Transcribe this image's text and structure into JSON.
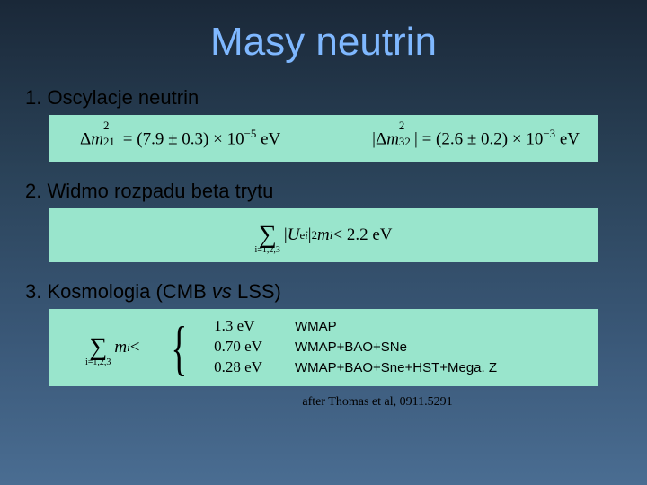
{
  "title": "Masy neutrin",
  "sections": {
    "s1": {
      "heading": "1. Oscylacje neutrin"
    },
    "s2": {
      "heading": "2. Widmo rozpadu beta trytu"
    },
    "s3": {
      "heading_prefix": "3. Kosmologia (CMB ",
      "heading_italic": "vs",
      "heading_suffix": " LSS)"
    }
  },
  "formulas": {
    "dm21_value": "(7.9 ± 0.3) × 10",
    "dm21_exp": "−5",
    "dm21_unit": " eV",
    "dm32_value": "(2.6 ± 0.2) × 10",
    "dm32_exp": "−3",
    "dm32_unit": " eV",
    "tritium_sum_bottom": "i=1,2,3",
    "tritium_rhs": " < 2.2 eV",
    "cosmo_sum_bottom": "i=1,2,3",
    "cosmo_lhs_tail": " <",
    "cosmo_vals": {
      "v1": "1.3 eV",
      "v2": "0.70 eV",
      "v3": "0.28 eV"
    },
    "cosmo_labels": {
      "l1": "WMAP",
      "l2": "WMAP+BAO+SNe",
      "l3": "WMAP+BAO+Sne+HST+Mega. Z"
    }
  },
  "citation": "after Thomas et al, 0911.5291",
  "colors": {
    "title": "#7fb8ff",
    "box_bg": "#99e5cc",
    "text": "#000000"
  }
}
